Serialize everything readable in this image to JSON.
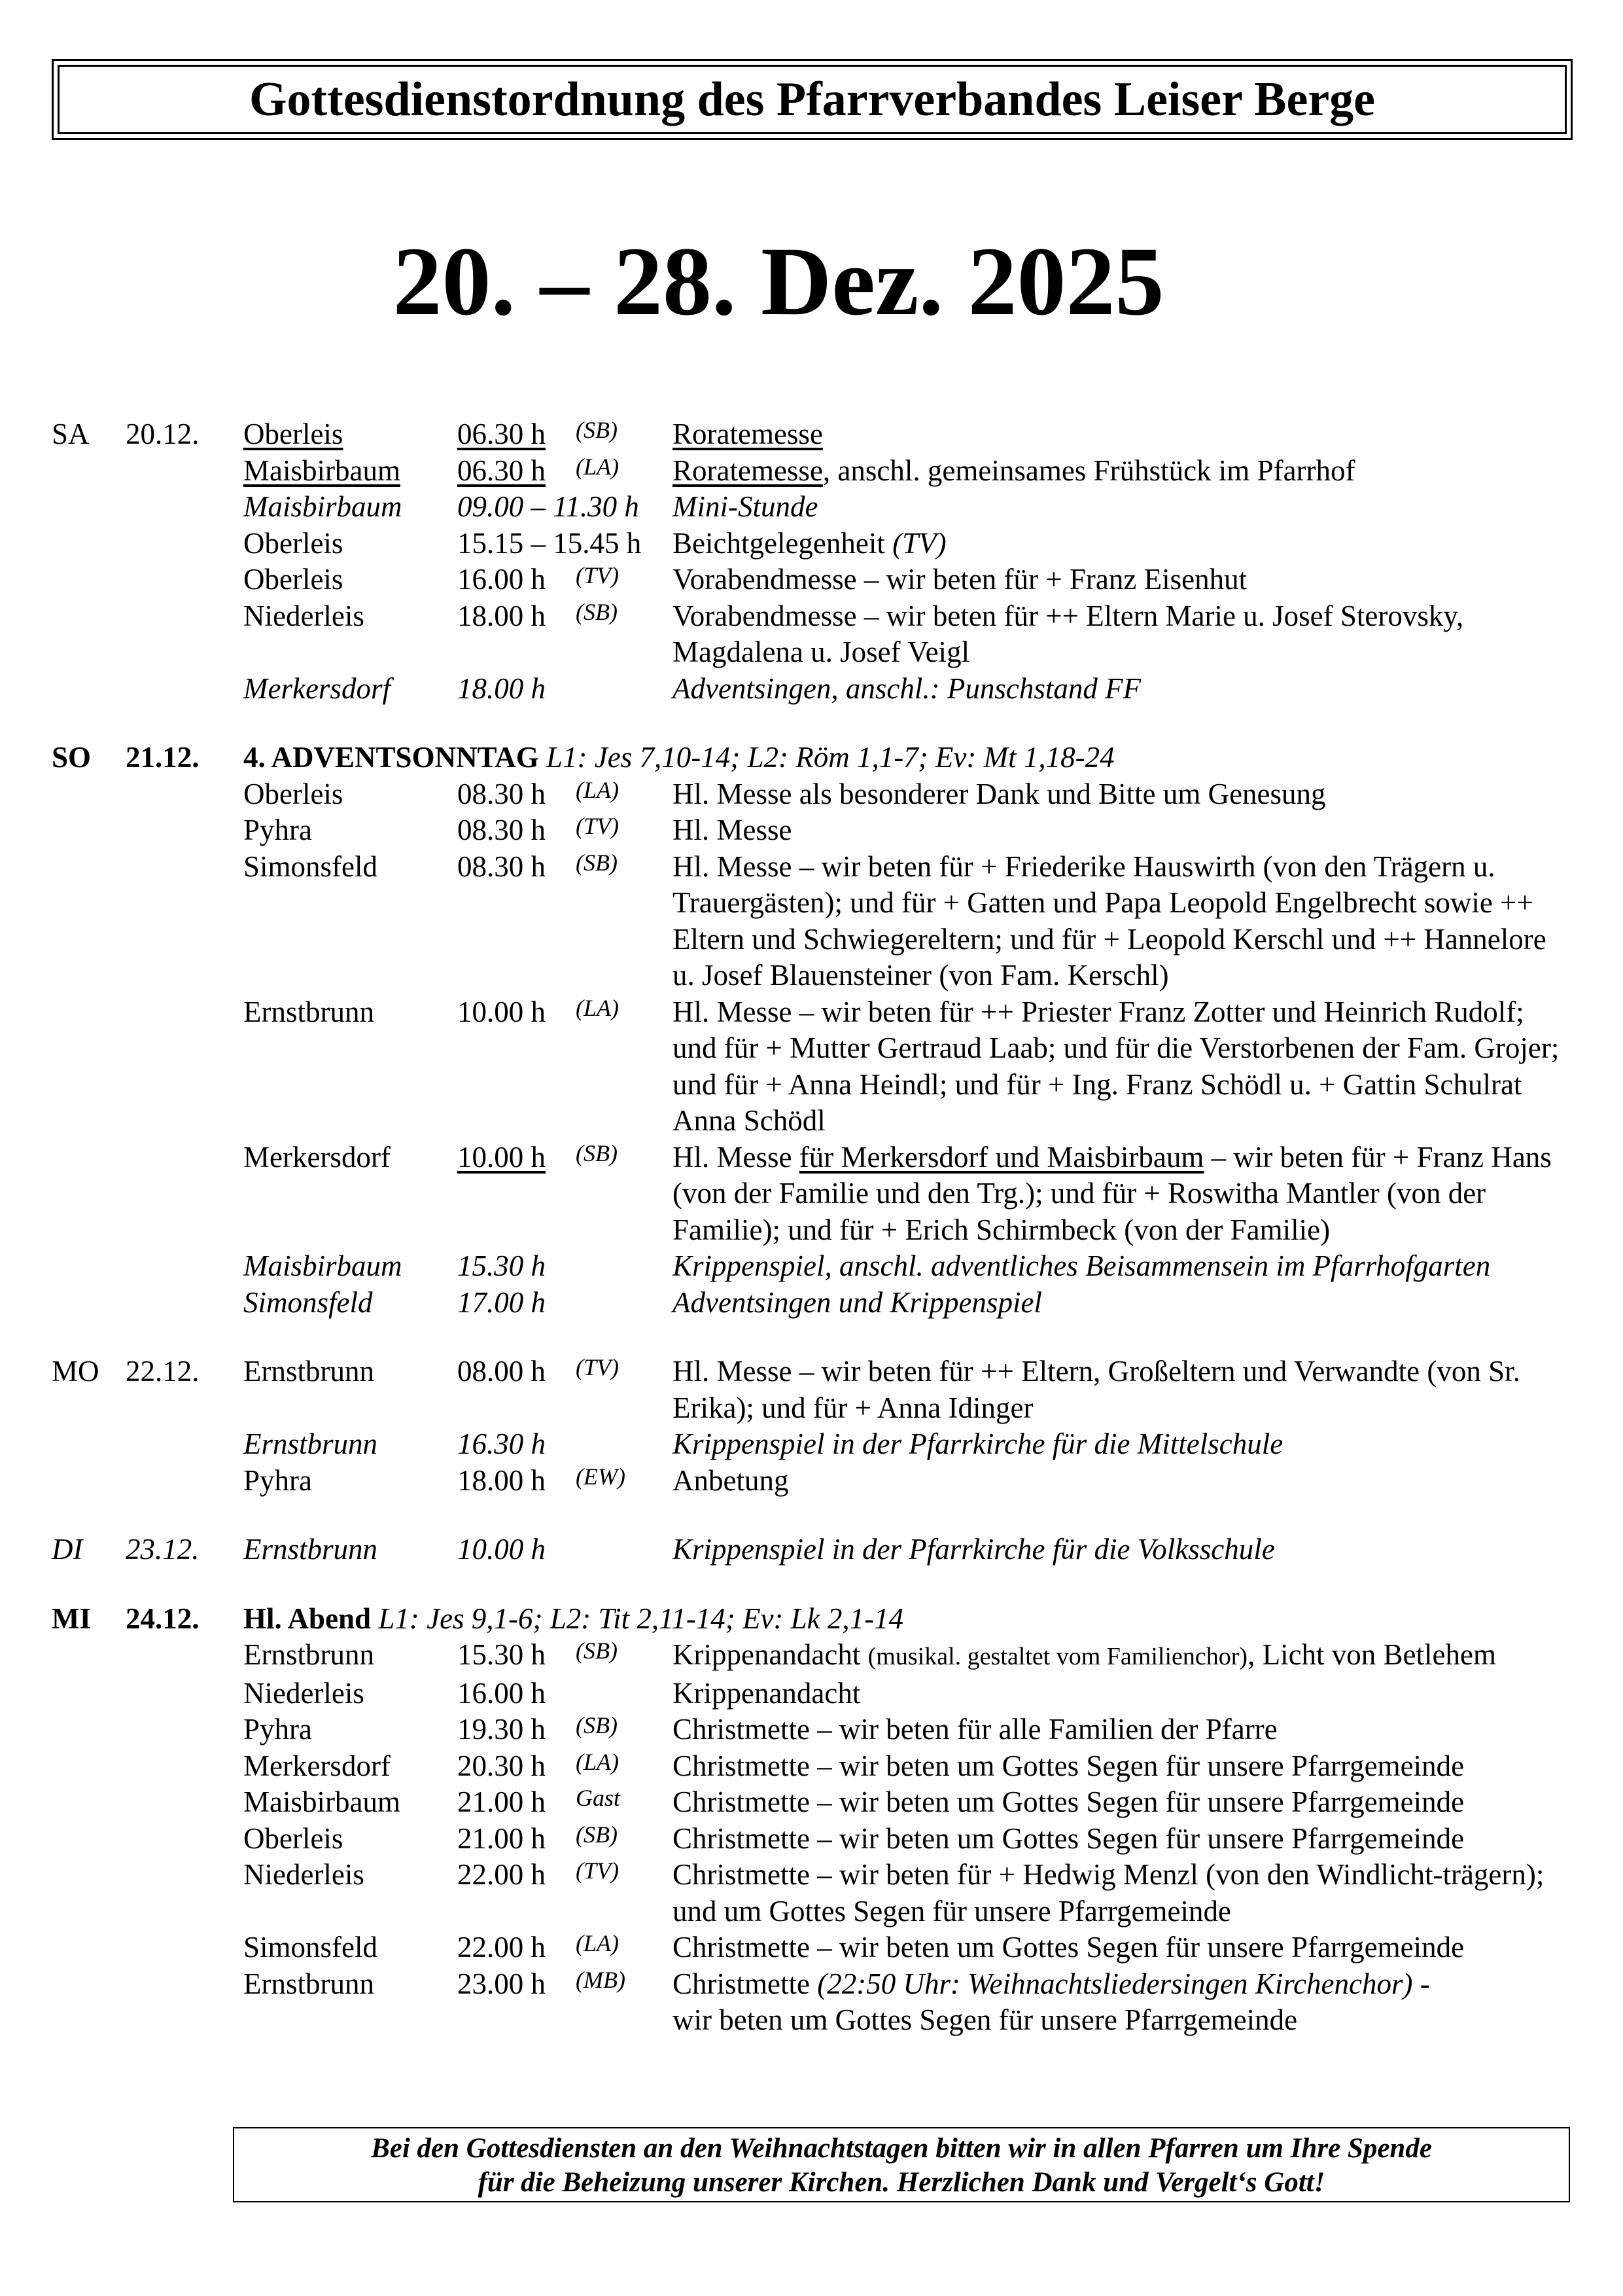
{
  "header": {
    "title": "Gottesdienstordnung des Pfarrverbandes Leiser Berge"
  },
  "date_range": "20. – 28. Dez. 2025",
  "groups": [
    {
      "day": "SA",
      "date": "20.12.",
      "bold": false,
      "entries": [
        {
          "place": "Oberleis",
          "place_u": true,
          "time": "06.30 h",
          "time_u": true,
          "code": "(SB)",
          "text": [
            {
              "t": "Roratemesse",
              "u": true
            }
          ]
        },
        {
          "place": "Maisbirbaum",
          "place_u": true,
          "time": "06.30 h",
          "time_u": true,
          "code": "(LA)",
          "text": [
            {
              "t": "Roratemesse",
              "u": true
            },
            {
              "t": ", anschl. gemeinsames Frühstück im Pfarrhof"
            }
          ]
        },
        {
          "italic": true,
          "place": "Maisbirbaum",
          "time": "09.00 – 11.30 h",
          "code": "",
          "text": [
            {
              "t": "Mini-Stunde"
            }
          ]
        },
        {
          "place": "Oberleis",
          "time": "15.15 – 15.45 h",
          "code": "",
          "text": [
            {
              "t": "Beichtgelegenheit "
            },
            {
              "t": "(TV)",
              "i": true
            }
          ]
        },
        {
          "place": "Oberleis",
          "time": "16.00 h",
          "code": "(TV)",
          "text": [
            {
              "t": "Vorabendmesse – wir beten für + Franz Eisenhut"
            }
          ]
        },
        {
          "place": "Niederleis",
          "time": "18.00 h",
          "code": "(SB)",
          "text": [
            {
              "t": "Vorabendmesse – wir beten für ++ Eltern Marie u. Josef Sterovsky, Magdalena u. Josef Veigl"
            }
          ]
        },
        {
          "italic": true,
          "place": "Merkersdorf",
          "time": "18.00 h",
          "code": "",
          "text": [
            {
              "t": "Adventsingen, anschl.: Punschstand FF"
            }
          ]
        }
      ]
    },
    {
      "day": "SO",
      "date": "21.12.",
      "bold": true,
      "heading": "4. ADVENTSONNTAG",
      "readings": "L1: Jes 7,10-14; L2: Röm 1,1-7; Ev: Mt 1,18-24",
      "entries": [
        {
          "place": "Oberleis",
          "time": "08.30 h",
          "code": "(LA)",
          "text": [
            {
              "t": "Hl. Messe als besonderer Dank und Bitte um Genesung"
            }
          ]
        },
        {
          "place": "Pyhra",
          "time": "08.30 h",
          "code": "(TV)",
          "text": [
            {
              "t": "Hl. Messe"
            }
          ]
        },
        {
          "place": "Simonsfeld",
          "time": "08.30 h",
          "code": "(SB)",
          "text": [
            {
              "t": "Hl. Messe – wir beten für + Friederike Hauswirth (von den Trägern u. Trauergästen); und für + Gatten und Papa Leopold Engelbrecht sowie ++ Eltern und Schwiegereltern; und für + Leopold Kerschl und ++ Hannelore u. Josef Blauensteiner (von Fam. Kerschl)"
            }
          ]
        },
        {
          "place": "Ernstbrunn",
          "time": "10.00 h",
          "code": "(LA)",
          "text": [
            {
              "t": "Hl. Messe – wir beten für ++ Priester Franz Zotter und Heinrich Rudolf; und für + Mutter Gertraud Laab; und für die Verstorbenen der Fam. Grojer; und für + Anna Heindl; und für + Ing. Franz Schödl u. + Gattin Schulrat Anna Schödl"
            }
          ]
        },
        {
          "place": "Merkersdorf",
          "time": "10.00 h",
          "time_u": true,
          "code": "(SB)",
          "text": [
            {
              "t": "Hl. Messe "
            },
            {
              "t": "für Merkersdorf und Maisbirbaum",
              "u": true
            },
            {
              "t": " – wir beten für + Franz Hans (von der Familie und den Trg.); und für + Roswitha Mantler (von der Familie); und für + Erich Schirmbeck (von der Familie)"
            }
          ]
        },
        {
          "italic": true,
          "place": "Maisbirbaum",
          "time": "15.30 h",
          "code": "",
          "text": [
            {
              "t": "Krippenspiel, anschl. adventliches Beisammensein im Pfarrhofgarten"
            }
          ]
        },
        {
          "italic": true,
          "place": "Simonsfeld",
          "time": "17.00 h",
          "code": "",
          "text": [
            {
              "t": "Adventsingen und Krippenspiel"
            }
          ]
        }
      ]
    },
    {
      "day": "MO",
      "date": "22.12.",
      "bold": false,
      "entries": [
        {
          "place": "Ernstbrunn",
          "time": "08.00 h",
          "code": "(TV)",
          "text": [
            {
              "t": "Hl. Messe – wir beten für ++ Eltern, Großeltern und Verwandte (von Sr. Erika); und für + Anna Idinger"
            }
          ]
        },
        {
          "italic": true,
          "place": "Ernstbrunn",
          "time": "16.30 h",
          "code": "",
          "text": [
            {
              "t": "Krippenspiel in der Pfarrkirche für die Mittelschule"
            }
          ]
        },
        {
          "place": "Pyhra",
          "time": "18.00 h",
          "code": "(EW)",
          "text": [
            {
              "t": "Anbetung"
            }
          ]
        }
      ]
    },
    {
      "day": "DI",
      "date": "23.12.",
      "bold": false,
      "entries": [
        {
          "italic": true,
          "place": "Ernstbrunn",
          "time": "10.00 h",
          "code": "",
          "text": [
            {
              "t": "Krippenspiel in der Pfarrkirche für die Volksschule"
            }
          ]
        }
      ]
    },
    {
      "day": "MI",
      "date": "24.12.",
      "bold": true,
      "heading": "Hl. Abend",
      "readings": "L1: Jes 9,1-6; L2: Tit 2,11-14; Ev: Lk 2,1-14",
      "entries": [
        {
          "place": "Ernstbrunn",
          "time": "15.30 h",
          "code": "(SB)",
          "text": [
            {
              "t": "Krippenandacht "
            },
            {
              "t": "(musikal. gestaltet vom Familienchor)",
              "s": true
            },
            {
              "t": ", Licht von Betlehem"
            }
          ]
        },
        {
          "place": "Niederleis",
          "time": "16.00 h",
          "code": "",
          "text": [
            {
              "t": "Krippenandacht"
            }
          ]
        },
        {
          "place": "Pyhra",
          "time": "19.30 h",
          "code": "(SB)",
          "text": [
            {
              "t": "Christmette – wir beten für alle Familien der Pfarre"
            }
          ]
        },
        {
          "place": "Merkersdorf",
          "time": "20.30 h",
          "code": "(LA)",
          "text": [
            {
              "t": "Christmette – wir beten um Gottes Segen für unsere Pfarrgemeinde"
            }
          ]
        },
        {
          "place": "Maisbirbaum",
          "time": "21.00 h",
          "code": "Gast",
          "text": [
            {
              "t": "Christmette – wir beten um Gottes Segen für unsere Pfarrgemeinde"
            }
          ]
        },
        {
          "place": "Oberleis",
          "time": "21.00 h",
          "code": "(SB)",
          "text": [
            {
              "t": "Christmette – wir beten um Gottes Segen für unsere Pfarrgemeinde"
            }
          ]
        },
        {
          "place": "Niederleis",
          "time": "22.00 h",
          "code": "(TV)",
          "text": [
            {
              "t": "Christmette – wir beten für + Hedwig Menzl (von den Windlicht-trägern); und um Gottes Segen für unsere Pfarrgemeinde"
            }
          ]
        },
        {
          "place": "Simonsfeld",
          "time": "22.00 h",
          "code": "(LA)",
          "text": [
            {
              "t": "Christmette – wir beten um Gottes Segen für unsere Pfarrgemeinde"
            }
          ]
        },
        {
          "place": "Ernstbrunn",
          "time": "23.00 h",
          "code": "(MB)",
          "text": [
            {
              "t": "Christmette "
            },
            {
              "t": "(22:50 Uhr: Weihnachtsliedersingen Kirchenchor)",
              "i": true
            },
            {
              "t": " -",
              "br": true
            },
            {
              "t": "wir beten um Gottes Segen für unsere Pfarrgemeinde"
            }
          ]
        }
      ]
    }
  ],
  "footer": {
    "line1": "Bei den Gottesdiensten an den Weihnachtstagen bitten wir in allen Pfarren um Ihre Spende",
    "line2": "für die Beheizung unserer Kirchen. Herzlichen Dank und Vergelt‘s Gott!"
  }
}
